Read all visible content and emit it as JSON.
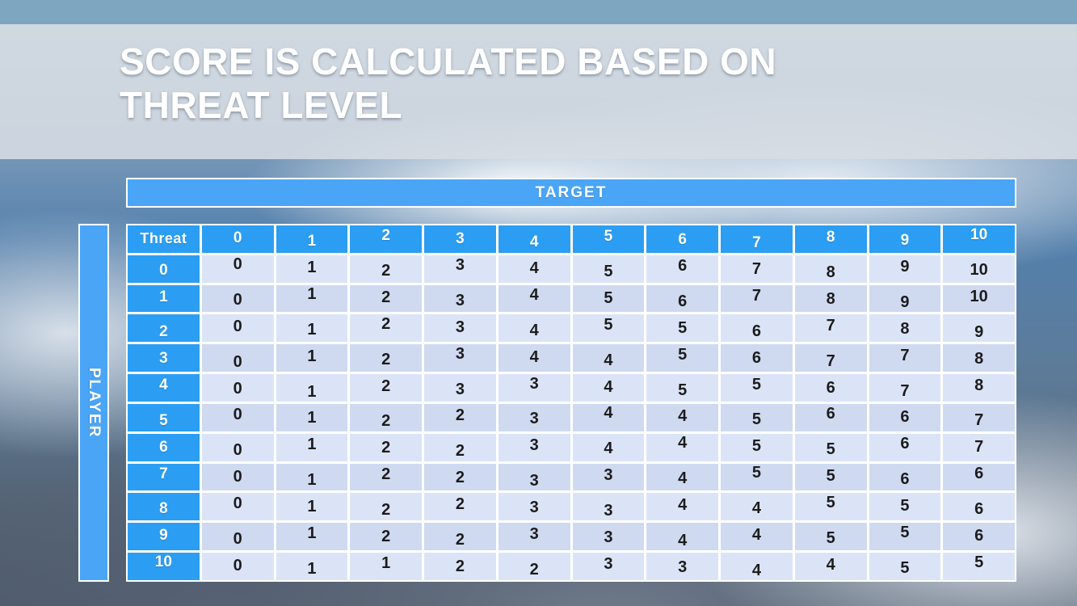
{
  "slide": {
    "title": "SCORE IS CALCULATED BASED ON\nTHREAT LEVEL"
  },
  "chart_data": {
    "type": "table",
    "title": "SCORE IS CALCULATED BASED ON THREAT LEVEL",
    "column_axis_label": "TARGET",
    "row_axis_label": "PLAYER",
    "corner_label": "Threat",
    "columns": [
      "0",
      "1",
      "2",
      "3",
      "4",
      "5",
      "6",
      "7",
      "8",
      "9",
      "10"
    ],
    "rows": [
      {
        "label": "0",
        "values": [
          0,
          1,
          2,
          3,
          4,
          5,
          6,
          7,
          8,
          9,
          10
        ]
      },
      {
        "label": "1",
        "values": [
          0,
          1,
          2,
          3,
          4,
          5,
          6,
          7,
          8,
          9,
          10
        ]
      },
      {
        "label": "2",
        "values": [
          0,
          1,
          2,
          3,
          4,
          5,
          5,
          6,
          7,
          8,
          9
        ]
      },
      {
        "label": "3",
        "values": [
          0,
          1,
          2,
          3,
          4,
          4,
          5,
          6,
          7,
          7,
          8
        ]
      },
      {
        "label": "4",
        "values": [
          0,
          1,
          2,
          3,
          3,
          4,
          5,
          5,
          6,
          7,
          8
        ]
      },
      {
        "label": "5",
        "values": [
          0,
          1,
          2,
          2,
          3,
          4,
          4,
          5,
          6,
          6,
          7
        ]
      },
      {
        "label": "6",
        "values": [
          0,
          1,
          2,
          2,
          3,
          4,
          4,
          5,
          5,
          6,
          7
        ]
      },
      {
        "label": "7",
        "values": [
          0,
          1,
          2,
          2,
          3,
          3,
          4,
          5,
          5,
          6,
          6
        ]
      },
      {
        "label": "8",
        "values": [
          0,
          1,
          2,
          2,
          3,
          3,
          4,
          4,
          5,
          5,
          6
        ]
      },
      {
        "label": "9",
        "values": [
          0,
          1,
          2,
          2,
          3,
          3,
          4,
          4,
          5,
          5,
          6
        ]
      },
      {
        "label": "10",
        "values": [
          0,
          1,
          1,
          2,
          2,
          3,
          3,
          4,
          4,
          5,
          5
        ]
      }
    ]
  },
  "colors": {
    "banner_blue": "#4aa5f6",
    "header_blue": "#2b9ef3",
    "cell_light": "#dbe4f7",
    "cell_dark": "#cfdaf1",
    "top_strip": "#7fa6c0",
    "title_band": "rgba(215,221,228,0.88)",
    "title_text": "#ffffff"
  }
}
